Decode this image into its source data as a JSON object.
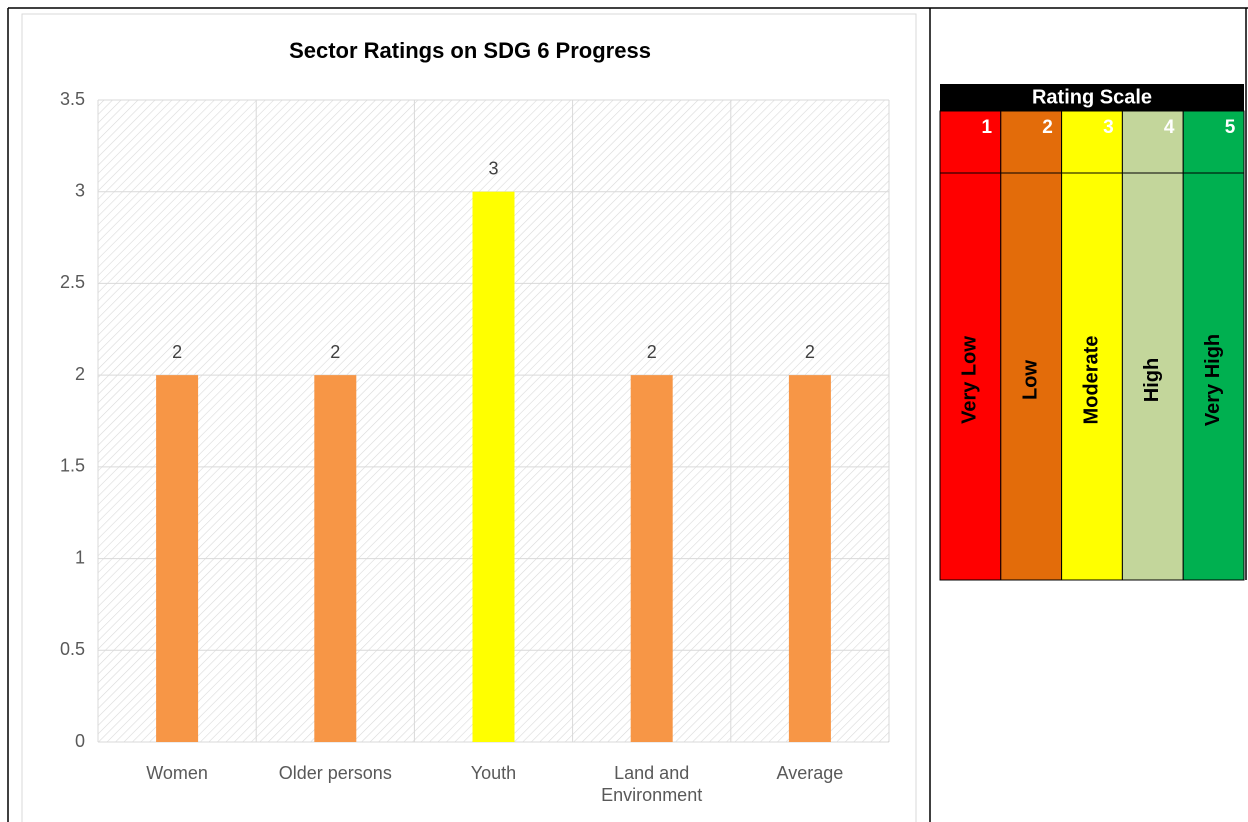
{
  "chart_data": {
    "type": "bar",
    "title": "Sector Ratings on SDG 6 Progress",
    "categories": [
      "Women",
      "Older persons",
      "Youth",
      "Land and Environment",
      "Average"
    ],
    "values": [
      2,
      2,
      3,
      2,
      2
    ],
    "colors": [
      "#f79646",
      "#f79646",
      "#ffff00",
      "#f79646",
      "#f79646"
    ],
    "ylim": [
      0,
      3.5
    ],
    "yticks": [
      0,
      0.5,
      1,
      1.5,
      2,
      2.5,
      3,
      3.5
    ],
    "grid": true,
    "data_labels": true
  },
  "rating_scale": {
    "title": "Rating Scale",
    "levels": [
      {
        "number": 1,
        "label": "Very Low",
        "color": "#ff0000"
      },
      {
        "number": 2,
        "label": "Low",
        "color": "#e36c0a"
      },
      {
        "number": 3,
        "label": "Moderate",
        "color": "#ffff00"
      },
      {
        "number": 4,
        "label": "High",
        "color": "#c3d69b"
      },
      {
        "number": 5,
        "label": "Very High",
        "color": "#00b050"
      }
    ]
  }
}
